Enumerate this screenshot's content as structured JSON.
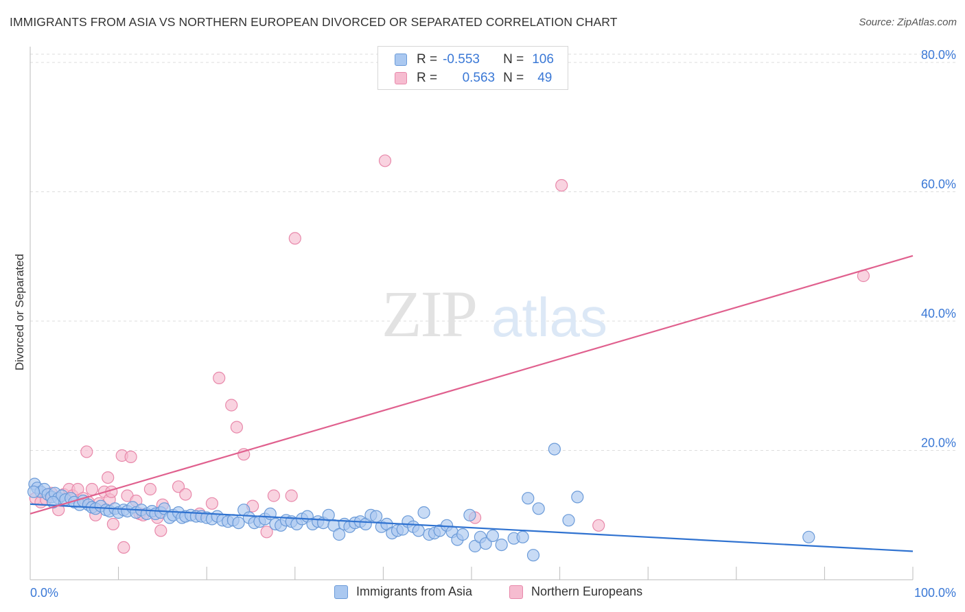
{
  "title": "IMMIGRANTS FROM ASIA VS NORTHERN EUROPEAN DIVORCED OR SEPARATED CORRELATION CHART",
  "source": "Source: ZipAtlas.com",
  "watermark": {
    "zip": "ZIP",
    "atlas": "atlas"
  },
  "legend": {
    "rows": [
      {
        "r_label": "R =",
        "r_value": "-0.553",
        "n_label": "N =",
        "n_value": "106"
      },
      {
        "r_label": "R =",
        "r_value": "0.563",
        "n_label": "N =",
        "n_value": "49"
      }
    ]
  },
  "colors": {
    "blue_fill": "#aac8f0",
    "blue_stroke": "#6a9ad8",
    "blue_line": "#2f72d0",
    "pink_fill": "#f6bcd0",
    "pink_stroke": "#e888aa",
    "pink_line": "#e0608e",
    "axis_text": "#3a78d6",
    "grid": "#dddddd"
  },
  "chart_data": {
    "type": "scatter",
    "title": "IMMIGRANTS FROM ASIA VS NORTHERN EUROPEAN DIVORCED OR SEPARATED CORRELATION CHART",
    "xlabel": "",
    "ylabel": "Divorced or Separated",
    "xlim": [
      0,
      100
    ],
    "ylim": [
      0,
      80
    ],
    "x_tick_labels": [
      "0.0%",
      "100.0%"
    ],
    "y_ticks": [
      20,
      40,
      60,
      80
    ],
    "y_tick_labels": [
      "20.0%",
      "40.0%",
      "60.0%",
      "80.0%"
    ],
    "grid": true,
    "series": [
      {
        "name": "Immigrants from Asia",
        "color": "#aac8f0",
        "trend": {
          "x": [
            0,
            100
          ],
          "y": [
            11.7,
            4.4
          ]
        },
        "points": [
          [
            0.5,
            14.8
          ],
          [
            0.8,
            14.2
          ],
          [
            1.2,
            13.6
          ],
          [
            1.6,
            14.0
          ],
          [
            2.0,
            13.2
          ],
          [
            2.4,
            12.8
          ],
          [
            2.8,
            13.4
          ],
          [
            3.2,
            12.6
          ],
          [
            3.6,
            13.0
          ],
          [
            4.0,
            12.4
          ],
          [
            4.6,
            12.6
          ],
          [
            5.0,
            12.0
          ],
          [
            5.6,
            11.6
          ],
          [
            6.0,
            12.2
          ],
          [
            6.6,
            11.6
          ],
          [
            7.0,
            11.2
          ],
          [
            7.4,
            11.0
          ],
          [
            8.0,
            11.4
          ],
          [
            8.6,
            10.8
          ],
          [
            9.0,
            10.6
          ],
          [
            9.6,
            11.0
          ],
          [
            10.0,
            10.4
          ],
          [
            10.6,
            10.8
          ],
          [
            11.0,
            10.6
          ],
          [
            11.6,
            11.2
          ],
          [
            12.0,
            10.4
          ],
          [
            12.6,
            10.8
          ],
          [
            13.2,
            10.2
          ],
          [
            13.8,
            10.6
          ],
          [
            14.2,
            10.2
          ],
          [
            14.8,
            10.4
          ],
          [
            15.2,
            11.0
          ],
          [
            15.8,
            9.6
          ],
          [
            16.2,
            10.0
          ],
          [
            16.8,
            10.4
          ],
          [
            17.2,
            9.6
          ],
          [
            17.6,
            9.8
          ],
          [
            18.2,
            10.0
          ],
          [
            18.8,
            9.8
          ],
          [
            19.4,
            9.8
          ],
          [
            20.0,
            9.6
          ],
          [
            20.6,
            9.4
          ],
          [
            21.2,
            9.8
          ],
          [
            21.8,
            9.2
          ],
          [
            22.4,
            9.0
          ],
          [
            23.0,
            9.2
          ],
          [
            23.6,
            8.8
          ],
          [
            24.2,
            10.8
          ],
          [
            24.8,
            9.6
          ],
          [
            25.4,
            8.8
          ],
          [
            26.0,
            9.0
          ],
          [
            26.6,
            9.4
          ],
          [
            27.2,
            10.2
          ],
          [
            27.8,
            8.6
          ],
          [
            28.4,
            8.4
          ],
          [
            29.0,
            9.2
          ],
          [
            29.6,
            9.0
          ],
          [
            30.2,
            8.6
          ],
          [
            30.8,
            9.4
          ],
          [
            31.4,
            9.8
          ],
          [
            32.0,
            8.6
          ],
          [
            32.6,
            9.0
          ],
          [
            33.2,
            8.8
          ],
          [
            33.8,
            10.0
          ],
          [
            34.4,
            8.4
          ],
          [
            35.0,
            7.0
          ],
          [
            35.6,
            8.6
          ],
          [
            36.2,
            8.2
          ],
          [
            36.8,
            8.8
          ],
          [
            37.4,
            9.0
          ],
          [
            38.0,
            8.6
          ],
          [
            38.6,
            10.0
          ],
          [
            39.2,
            9.8
          ],
          [
            39.8,
            8.2
          ],
          [
            40.4,
            8.6
          ],
          [
            41.0,
            7.2
          ],
          [
            41.6,
            7.6
          ],
          [
            42.2,
            7.8
          ],
          [
            42.8,
            9.0
          ],
          [
            43.4,
            8.2
          ],
          [
            44.0,
            7.6
          ],
          [
            44.6,
            10.4
          ],
          [
            45.2,
            7.0
          ],
          [
            45.8,
            7.2
          ],
          [
            46.4,
            7.6
          ],
          [
            47.2,
            8.4
          ],
          [
            47.8,
            7.4
          ],
          [
            48.4,
            6.2
          ],
          [
            49.0,
            7.0
          ],
          [
            49.8,
            10.0
          ],
          [
            50.4,
            5.2
          ],
          [
            51.0,
            6.6
          ],
          [
            51.6,
            5.6
          ],
          [
            52.4,
            6.8
          ],
          [
            53.4,
            5.4
          ],
          [
            54.8,
            6.4
          ],
          [
            55.8,
            6.6
          ],
          [
            56.4,
            12.6
          ],
          [
            57.0,
            3.8
          ],
          [
            57.6,
            11.0
          ],
          [
            59.4,
            20.2
          ],
          [
            61.0,
            9.2
          ],
          [
            62.0,
            12.8
          ],
          [
            88.2,
            6.6
          ],
          [
            0.4,
            13.6
          ],
          [
            2.6,
            12.0
          ]
        ]
      },
      {
        "name": "Northern Europeans",
        "color": "#f6bcd0",
        "trend": {
          "x": [
            0,
            100
          ],
          "y": [
            10.2,
            50.1
          ]
        },
        "points": [
          [
            0.6,
            12.6
          ],
          [
            1.2,
            12.0
          ],
          [
            1.8,
            12.4
          ],
          [
            2.4,
            13.4
          ],
          [
            3.2,
            10.8
          ],
          [
            3.8,
            13.2
          ],
          [
            4.4,
            14.0
          ],
          [
            4.8,
            13.0
          ],
          [
            5.4,
            14.0
          ],
          [
            6.0,
            12.6
          ],
          [
            6.6,
            12.0
          ],
          [
            6.4,
            19.8
          ],
          [
            7.0,
            14.0
          ],
          [
            7.4,
            10.0
          ],
          [
            7.8,
            11.8
          ],
          [
            8.4,
            13.6
          ],
          [
            8.8,
            15.8
          ],
          [
            9.0,
            12.4
          ],
          [
            9.4,
            8.6
          ],
          [
            10.6,
            5.0
          ],
          [
            10.4,
            19.2
          ],
          [
            11.0,
            13.0
          ],
          [
            11.4,
            19.0
          ],
          [
            12.0,
            12.2
          ],
          [
            12.4,
            10.2
          ],
          [
            12.8,
            10.0
          ],
          [
            13.6,
            14.0
          ],
          [
            14.4,
            9.6
          ],
          [
            14.8,
            7.6
          ],
          [
            15.0,
            11.6
          ],
          [
            16.8,
            14.4
          ],
          [
            17.6,
            13.2
          ],
          [
            19.2,
            10.2
          ],
          [
            20.6,
            11.8
          ],
          [
            21.4,
            31.2
          ],
          [
            22.8,
            27.0
          ],
          [
            23.4,
            23.6
          ],
          [
            24.2,
            19.4
          ],
          [
            25.2,
            11.4
          ],
          [
            26.8,
            7.4
          ],
          [
            27.6,
            13.0
          ],
          [
            29.6,
            13.0
          ],
          [
            30.0,
            52.8
          ],
          [
            40.2,
            64.8
          ],
          [
            50.4,
            9.6
          ],
          [
            60.2,
            61.0
          ],
          [
            64.4,
            8.4
          ],
          [
            94.4,
            47.0
          ],
          [
            9.2,
            13.6
          ]
        ]
      }
    ]
  },
  "bottom_legend": {
    "items": [
      {
        "label": "Immigrants from Asia"
      },
      {
        "label": "Northern Europeans"
      }
    ]
  }
}
